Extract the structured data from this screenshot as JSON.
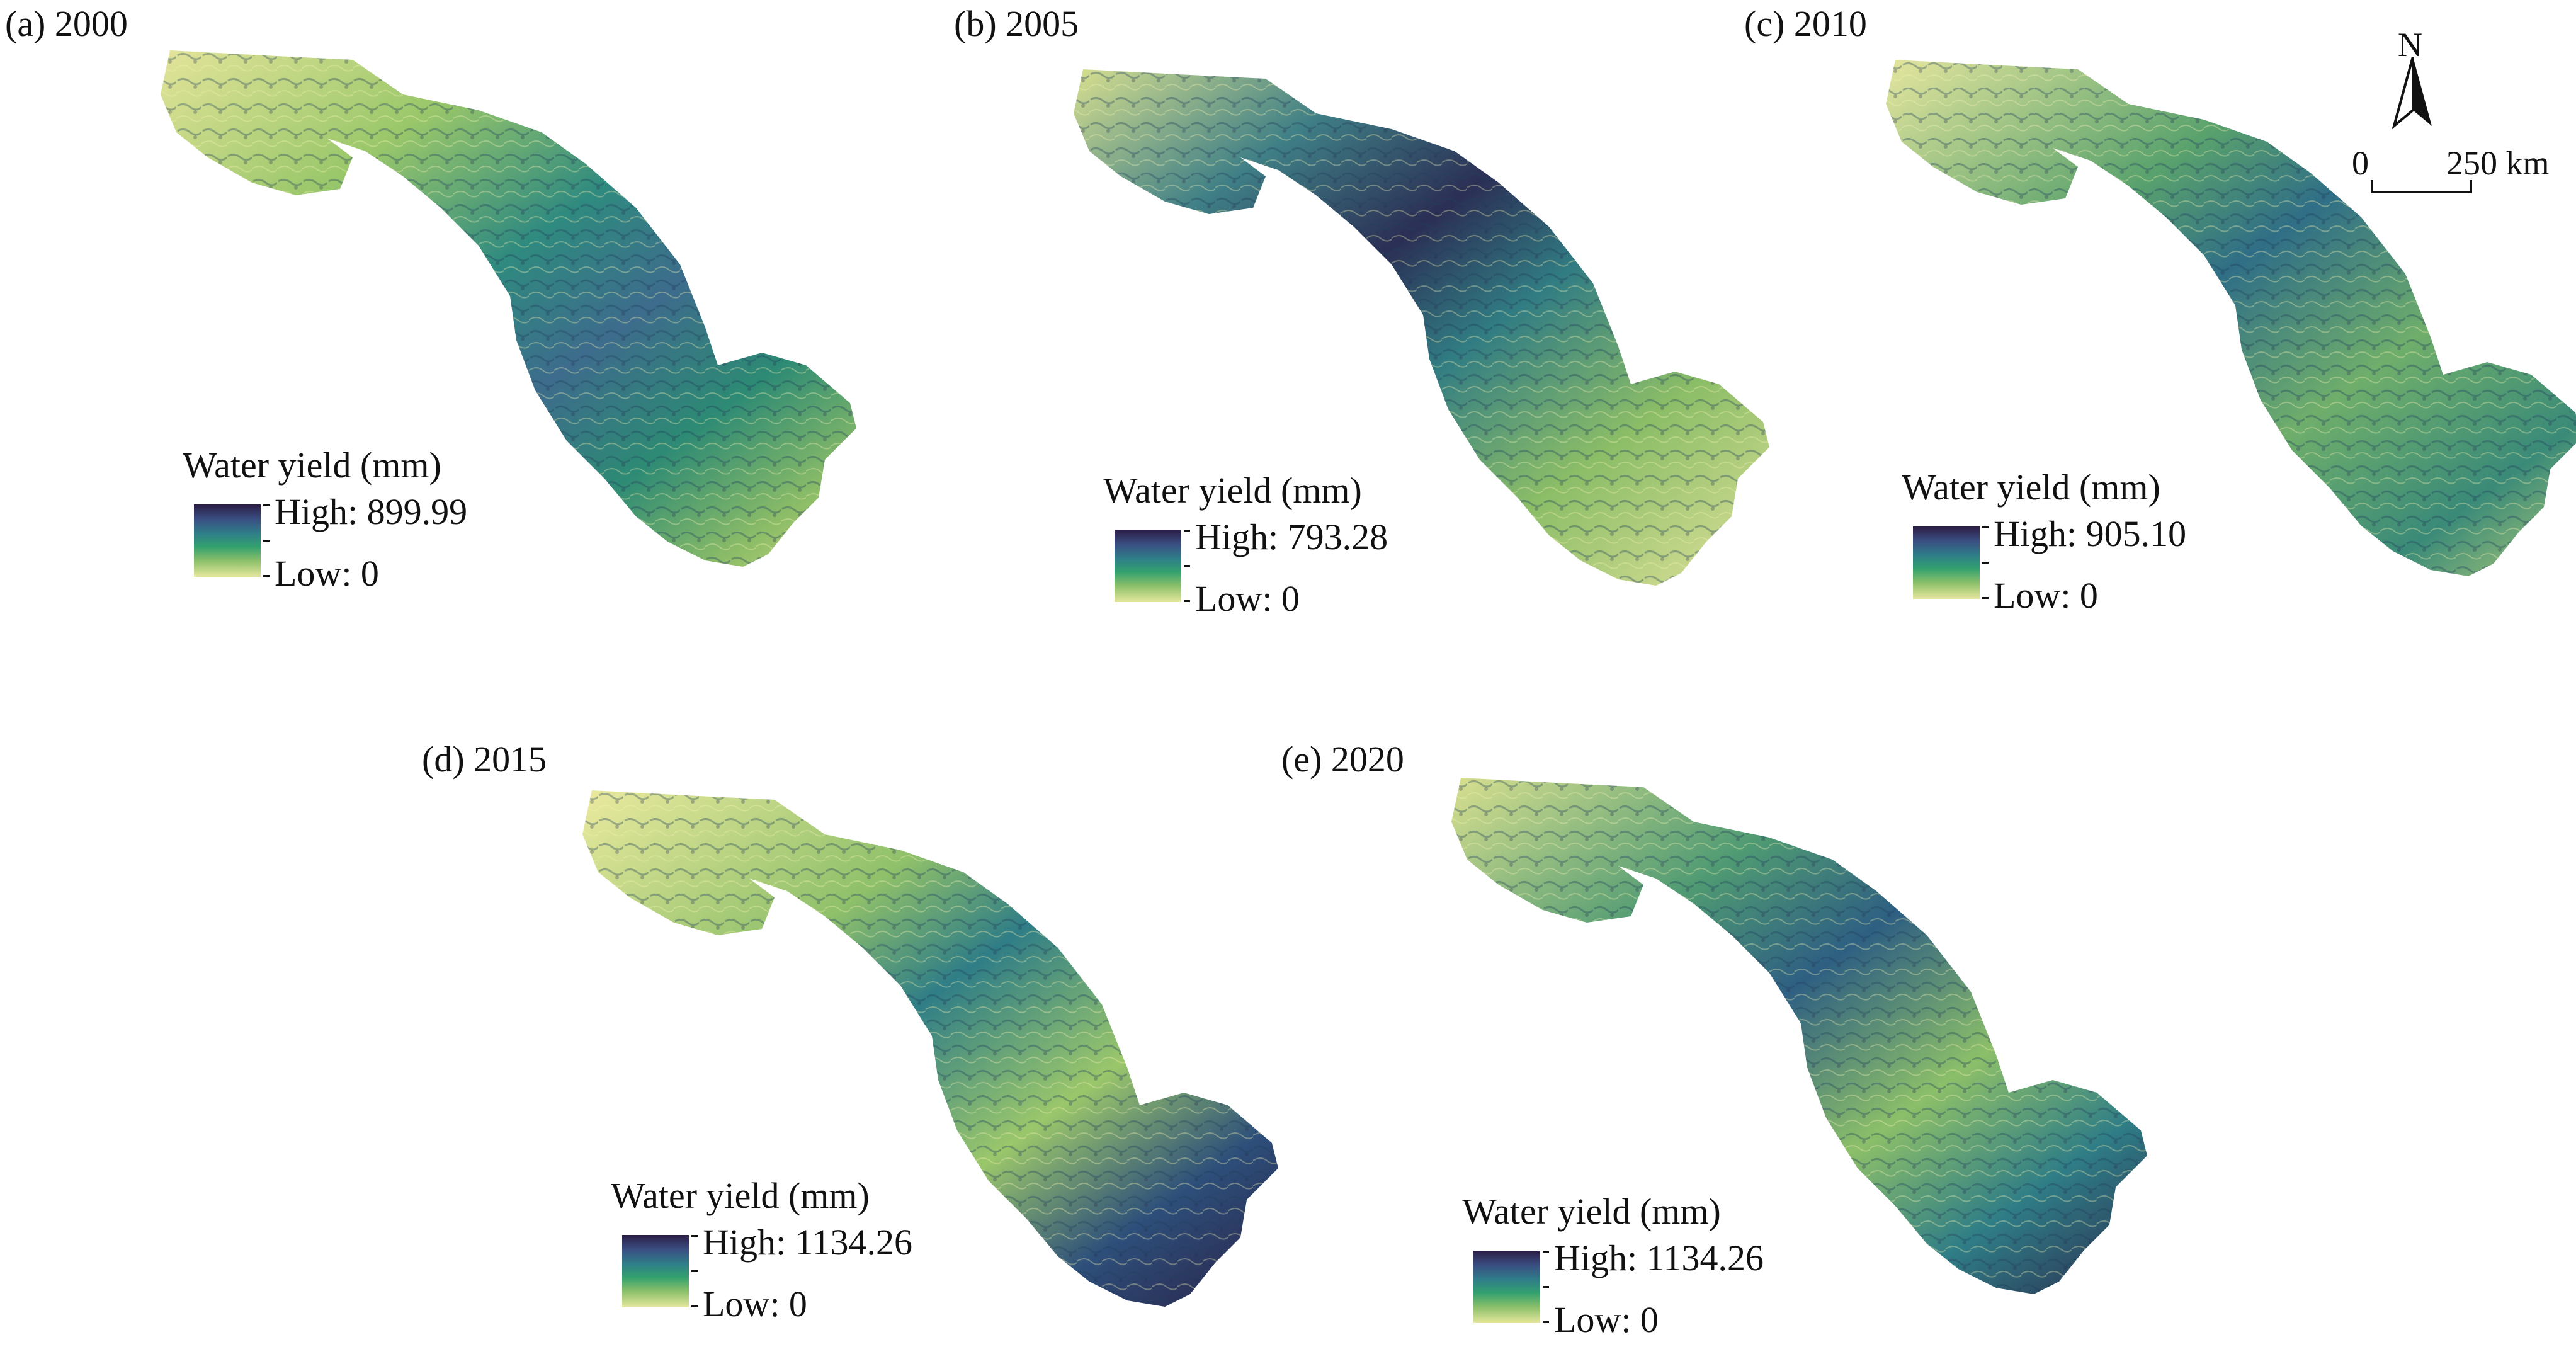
{
  "legend_title": "Water yield (mm)",
  "colors": {
    "low": "#e6e79e",
    "mid": "#32a06f",
    "high": "#2b1d44"
  },
  "panels": [
    {
      "label": "(a) 2000",
      "high": "High: 899.99",
      "low": "Low: 0",
      "pattern": "a"
    },
    {
      "label": "(b) 2005",
      "high": "High: 793.28",
      "low": "Low: 0",
      "pattern": "b"
    },
    {
      "label": "(c) 2010",
      "high": "High: 905.10",
      "low": "Low: 0",
      "pattern": "c"
    },
    {
      "label": "(d) 2015",
      "high": "High: 1134.26",
      "low": "Low: 0",
      "pattern": "d"
    },
    {
      "label": "(e) 2020",
      "high": "High: 1134.26",
      "low": "Low: 0",
      "pattern": "e"
    }
  ],
  "north_arrow": {
    "letter": "N"
  },
  "scale_bar": {
    "start": "0",
    "end": "250 km"
  }
}
